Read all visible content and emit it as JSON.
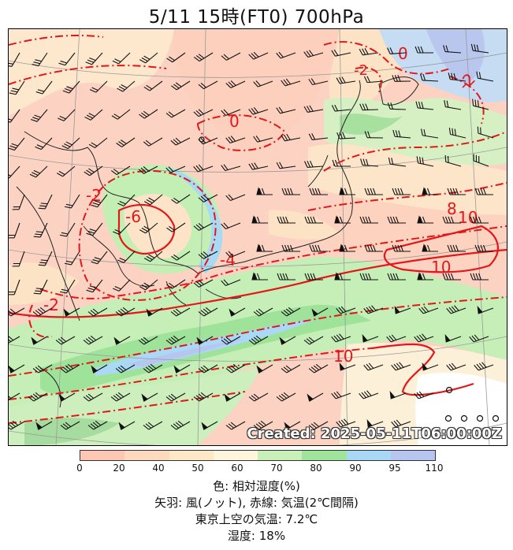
{
  "title": "5/11  15時(FT0)     700hPa",
  "created": "Created: 2025-05-11T06:00:00Z",
  "colorbar": {
    "colors": [
      "#fdc7b4",
      "#fdd9be",
      "#fee8c8",
      "#fdf5dc",
      "#c8f0b8",
      "#9ee49a",
      "#a8d8f5",
      "#b7c6f0"
    ],
    "ticks": [
      "0",
      "20",
      "40",
      "50",
      "60",
      "70",
      "80",
      "90",
      "95",
      "110"
    ]
  },
  "legend": [
    "色: 相対湿度(%)",
    "矢羽: 風(ノット),  赤線: 気温(2℃間隔)",
    "東京上空の気温: 7.2℃",
    "湿度: 18%"
  ],
  "temperature_labels": [
    "0",
    "-2",
    "-2",
    "0",
    "-2",
    "-6",
    "-4",
    "-2",
    "8",
    "10",
    "10",
    "10"
  ]
}
